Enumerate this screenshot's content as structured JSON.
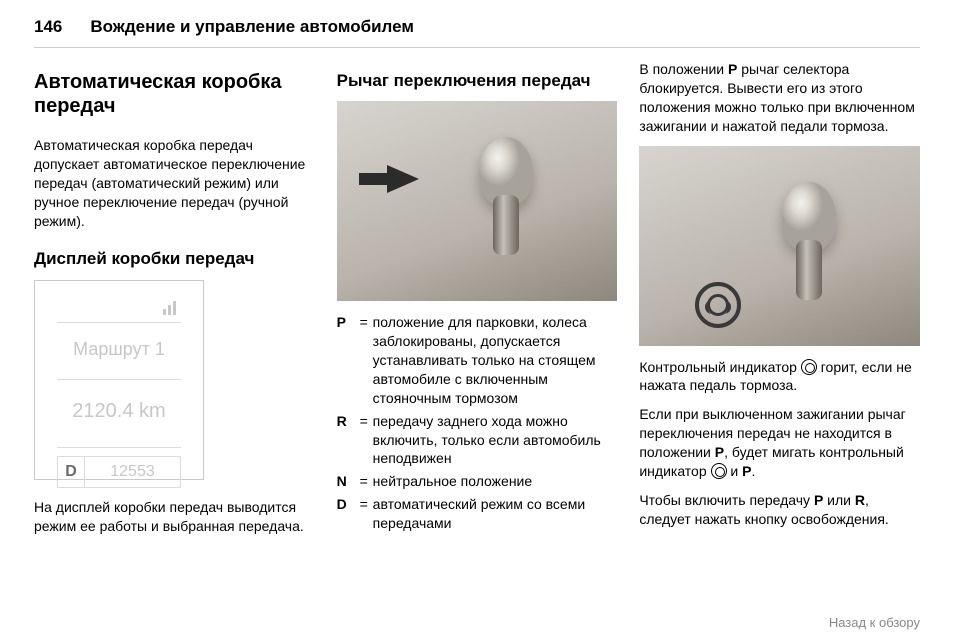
{
  "header": {
    "page_number": "146",
    "chapter": "Вождение и управление автомобилем"
  },
  "col1": {
    "h1": "Автоматическая коробка передач",
    "intro": "Автоматическая коробка передач допускает автоматическое пере­ключение передач (автоматиче­ский режим) или ручное переклю­чение передач (ручной режим).",
    "h2": "Дисплей коробки передач",
    "display": {
      "route": "Маршрут 1",
      "km": "2120.4 km",
      "d": "D",
      "code": "12553"
    },
    "note": "На дисплей коробки передач выво­дится режим ее работы и выбран­ная передача."
  },
  "col2": {
    "h2": "Рычаг переключения передач",
    "gears": [
      {
        "sym": "P",
        "desc": "положение для парковки, ко­леса заблокированы, допус­кается устанавливать только на стоящем автомобиле с включенным стояночным тормозом"
      },
      {
        "sym": "R",
        "desc": "передачу заднего хода можно включить, только если автомобиль неподвижен"
      },
      {
        "sym": "N",
        "desc": "нейтральное положение"
      },
      {
        "sym": "D",
        "desc": "автоматический режим со всеми передачами"
      }
    ]
  },
  "col3": {
    "p1a": "В положении ",
    "p1b": " рычаг селектора блокируется. Вывести его из этого положения можно только при вклю­ченном зажигании и нажатой пе­дали тормоза.",
    "p2": "Контрольный индикатор ",
    "p2b": " горит, если не нажата педаль тормоза.",
    "p3a": "Если при выключенном зажигании рычаг переключения передач не находится в положении ",
    "p3b": ", будет мигать контрольный индикатор ",
    "p3c": " и ",
    "p3d": ".",
    "p4a": "Чтобы включить передачу ",
    "p4b": " или ",
    "p4c": ", следует нажать кнопку освобожде­ния.",
    "P": "P",
    "R": "R"
  },
  "footer": {
    "back": "Назад к обзору"
  }
}
